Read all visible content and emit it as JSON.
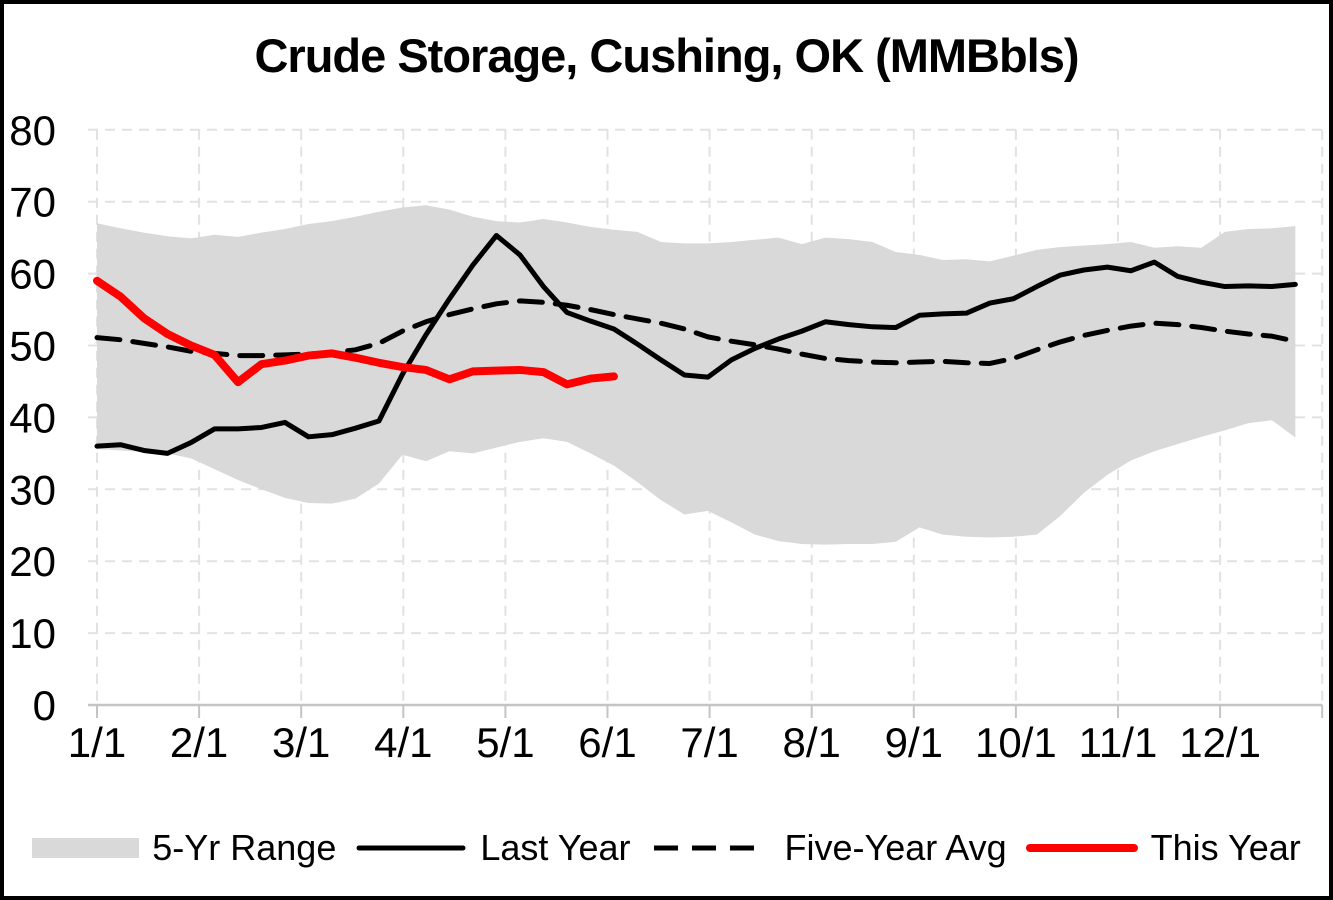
{
  "window": {
    "background": "#ffffff",
    "frame_border_color": "#000000"
  },
  "chart_data": {
    "type": "area+line",
    "title": "Crude Storage, Cushing, OK (MMBbls)",
    "xlabel": "",
    "ylabel": "",
    "ylim": [
      0,
      80
    ],
    "y_ticks": [
      0,
      10,
      20,
      30,
      40,
      50,
      60,
      70,
      80
    ],
    "x_tick_labels": [
      "1/1",
      "2/1",
      "3/1",
      "4/1",
      "5/1",
      "6/1",
      "7/1",
      "8/1",
      "9/1",
      "10/1",
      "11/1",
      "12/1"
    ],
    "x_axis_note": "weekly data points, day_of_year = index * 7",
    "grid": true,
    "legend_position": "bottom",
    "colors": {
      "band": "#d9d9d9",
      "last_year": "#000000",
      "five_year_avg": "#000000",
      "this_year": "#ff0000",
      "gridline": "#e2e2e2",
      "axis": "#c4c4c4",
      "text": "#000000"
    },
    "series": [
      {
        "name": "5-Yr Range",
        "type": "band",
        "color": "#d9d9d9",
        "top": [
          67.0,
          66.3,
          65.7,
          65.2,
          64.9,
          65.4,
          65.1,
          65.7,
          66.2,
          66.9,
          67.3,
          67.9,
          68.6,
          69.2,
          69.5,
          68.9,
          67.9,
          67.3,
          67.1,
          67.6,
          67.1,
          66.5,
          66.1,
          65.8,
          64.4,
          64.2,
          64.2,
          64.4,
          64.7,
          65.0,
          64.1,
          65.0,
          64.8,
          64.4,
          63.0,
          62.6,
          61.9,
          62.0,
          61.7,
          62.5,
          63.3,
          63.7,
          63.9,
          64.1,
          64.4,
          63.6,
          63.8,
          63.6,
          65.8,
          66.2,
          66.3,
          66.6
        ],
        "bottom": [
          35.6,
          35.4,
          35.2,
          35.0,
          34.3,
          32.8,
          31.3,
          30.0,
          28.8,
          28.1,
          28.0,
          28.7,
          30.8,
          34.8,
          33.9,
          35.3,
          35.0,
          35.8,
          36.6,
          37.1,
          36.6,
          35.0,
          33.3,
          31.0,
          28.5,
          26.5,
          27.0,
          25.4,
          23.7,
          22.8,
          22.4,
          22.3,
          22.4,
          22.4,
          22.7,
          24.7,
          23.7,
          23.4,
          23.3,
          23.4,
          23.7,
          26.3,
          29.5,
          32.0,
          34.0,
          35.3,
          36.3,
          37.3,
          38.2,
          39.2,
          39.6,
          37.2
        ]
      },
      {
        "name": "Last Year",
        "type": "line",
        "line_style": "solid",
        "color": "#000000",
        "width": 5,
        "values": [
          36.0,
          36.2,
          35.4,
          35.0,
          36.5,
          38.4,
          38.4,
          38.6,
          39.3,
          37.3,
          37.6,
          38.5,
          39.5,
          46.0,
          51.5,
          56.5,
          61.2,
          65.3,
          62.6,
          58.2,
          54.6,
          53.4,
          52.3,
          50.2,
          48.0,
          45.9,
          45.6,
          48.0,
          49.6,
          50.9,
          52.0,
          53.3,
          52.9,
          52.6,
          52.5,
          54.2,
          54.4,
          54.5,
          55.9,
          56.5,
          58.2,
          59.8,
          60.5,
          60.9,
          60.4,
          61.6,
          59.6,
          58.8,
          58.2,
          58.3,
          58.2,
          58.5
        ]
      },
      {
        "name": "Five-Year Avg",
        "type": "line",
        "line_style": "dashed",
        "color": "#000000",
        "width": 5,
        "values": [
          51.1,
          50.8,
          50.3,
          49.8,
          49.2,
          48.9,
          48.6,
          48.6,
          48.7,
          48.8,
          49.0,
          49.4,
          50.3,
          52.0,
          53.3,
          54.3,
          55.1,
          55.8,
          56.2,
          56.0,
          55.6,
          55.0,
          54.3,
          53.7,
          53.1,
          52.3,
          51.2,
          50.6,
          50.1,
          49.5,
          48.8,
          48.2,
          47.9,
          47.7,
          47.6,
          47.7,
          47.8,
          47.6,
          47.5,
          48.2,
          49.4,
          50.5,
          51.4,
          52.1,
          52.7,
          53.1,
          52.9,
          52.5,
          52.0,
          51.6,
          51.3,
          50.6
        ]
      },
      {
        "name": "This Year",
        "type": "line",
        "line_style": "solid",
        "color": "#ff0000",
        "width": 8,
        "values": [
          59.0,
          56.8,
          53.8,
          51.6,
          50.0,
          48.7,
          44.9,
          47.4,
          47.9,
          48.6,
          48.9,
          48.3,
          47.6,
          47.0,
          46.6,
          45.3,
          46.4,
          46.5,
          46.6,
          46.3,
          44.6,
          45.4,
          45.7
        ]
      }
    ]
  },
  "legend": {
    "items": [
      {
        "label": "5-Yr Range",
        "swatch": "band"
      },
      {
        "label": "Last Year",
        "swatch": "solid-line"
      },
      {
        "label": "Five-Year Avg",
        "swatch": "dashed-line"
      },
      {
        "label": "This Year",
        "swatch": "red-line"
      }
    ]
  }
}
